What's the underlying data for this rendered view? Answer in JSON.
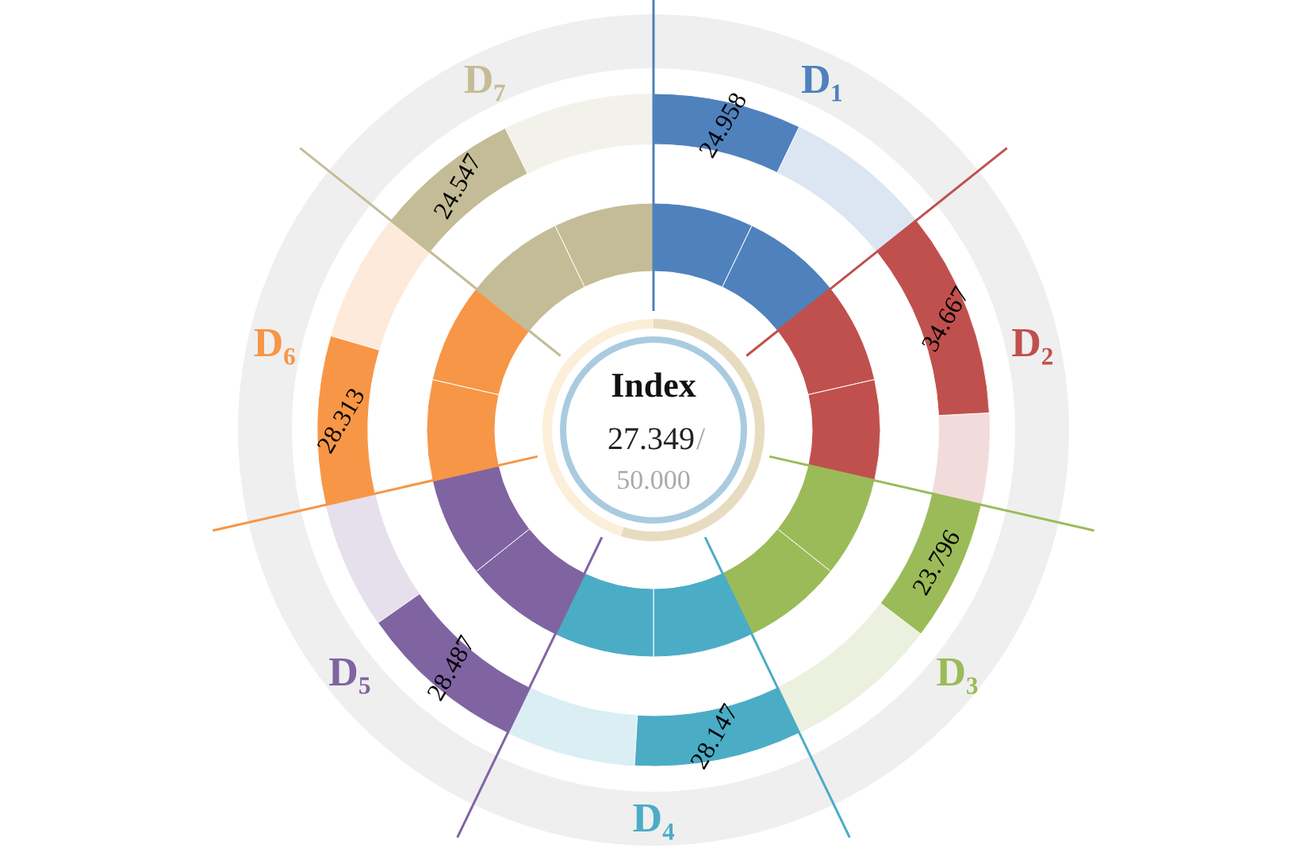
{
  "chart_data": {
    "type": "other",
    "categories": [
      "D₁",
      "D₂",
      "D₃",
      "D₄",
      "D₅",
      "D₆",
      "D₇"
    ],
    "values": [
      24.958,
      34.667,
      23.796,
      28.147,
      28.487,
      28.313,
      24.547
    ],
    "colors": [
      "#4f81bd",
      "#c0504d",
      "#9bbb59",
      "#4bacc6",
      "#8064a2",
      "#f79646",
      "#c4bc96"
    ],
    "data_labels": true,
    "annotations": [
      "Index",
      "27.349",
      "/",
      "50.000"
    ]
  }
}
